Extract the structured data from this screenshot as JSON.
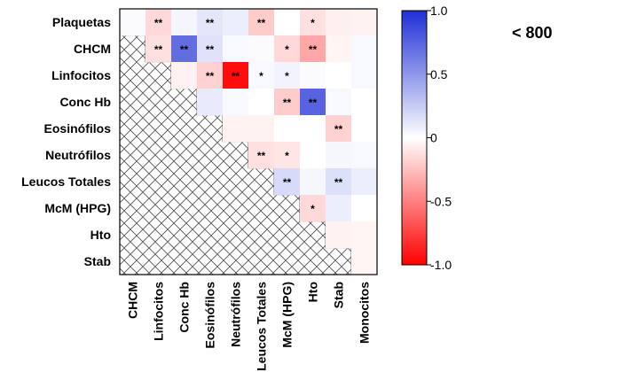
{
  "subtitle": "< 800",
  "chart_data": {
    "type": "heatmap",
    "title": "",
    "row_labels": [
      "Plaquetas",
      "CHCM",
      "Linfocitos",
      "Conc Hb",
      "Eosinófilos",
      "Neutrófilos",
      "Leucos Totales",
      "McM (HPG)",
      "Hto",
      "Stab"
    ],
    "col_labels": [
      "CHCM",
      "Linfocitos",
      "Conc Hb",
      "Eosinófilos",
      "Neutrófilos",
      "Leucos Totales",
      "McM (HPG)",
      "Hto",
      "Stab",
      "Monocitos"
    ],
    "values": [
      [
        0.02,
        -0.15,
        0.05,
        0.12,
        0.08,
        -0.2,
        0.0,
        -0.12,
        -0.06,
        -0.05
      ],
      [
        null,
        -0.12,
        0.7,
        0.14,
        0.03,
        0.02,
        -0.15,
        -0.35,
        -0.04,
        0.03
      ],
      [
        null,
        null,
        -0.05,
        -0.18,
        -0.95,
        0.03,
        0.06,
        0.02,
        0.0,
        0.03
      ],
      [
        null,
        null,
        null,
        0.1,
        0.03,
        0.0,
        -0.2,
        0.75,
        0.03,
        0.0
      ],
      [
        null,
        null,
        null,
        null,
        -0.05,
        -0.05,
        0.0,
        0.0,
        -0.18,
        0.0
      ],
      [
        null,
        null,
        null,
        null,
        null,
        -0.12,
        -0.1,
        0.0,
        0.04,
        0.03
      ],
      [
        null,
        null,
        null,
        null,
        null,
        null,
        0.18,
        0.04,
        0.15,
        0.08
      ],
      [
        null,
        null,
        null,
        null,
        null,
        null,
        null,
        -0.15,
        0.08,
        0.0
      ],
      [
        null,
        null,
        null,
        null,
        null,
        null,
        null,
        null,
        -0.05,
        -0.04
      ],
      [
        null,
        null,
        null,
        null,
        null,
        null,
        null,
        null,
        null,
        -0.04
      ]
    ],
    "significance": [
      [
        "",
        "**",
        "",
        "**",
        "",
        "**",
        "",
        "*",
        "",
        ""
      ],
      [
        "",
        "**",
        "**",
        "**",
        "",
        "",
        "*",
        "**",
        "",
        ""
      ],
      [
        "",
        "",
        "",
        "**",
        "**",
        "*",
        "*",
        "",
        "",
        ""
      ],
      [
        "",
        "",
        "",
        "",
        "",
        "",
        "**",
        "**",
        "",
        ""
      ],
      [
        "",
        "",
        "",
        "",
        "",
        "",
        "",
        "",
        "**",
        ""
      ],
      [
        "",
        "",
        "",
        "",
        "",
        "**",
        "*",
        "",
        "",
        ""
      ],
      [
        "",
        "",
        "",
        "",
        "",
        "",
        "**",
        "",
        "**",
        ""
      ],
      [
        "",
        "",
        "",
        "",
        "",
        "",
        "",
        "*",
        "",
        ""
      ],
      [
        "",
        "",
        "",
        "",
        "",
        "",
        "",
        "",
        "",
        ""
      ],
      [
        "",
        "",
        "",
        "",
        "",
        "",
        "",
        "",
        "",
        ""
      ]
    ],
    "colorbar": {
      "range": [
        -1.0,
        1.0
      ],
      "ticks": [
        1.0,
        0.5,
        0,
        -0.5,
        -1.0
      ],
      "tick_labels": [
        "1.0",
        "0.5",
        "0",
        "-0.5",
        "-1.0"
      ],
      "colors": {
        "high": "#1f2fd6",
        "mid": "#ffffff",
        "low": "#ff0000"
      }
    }
  }
}
